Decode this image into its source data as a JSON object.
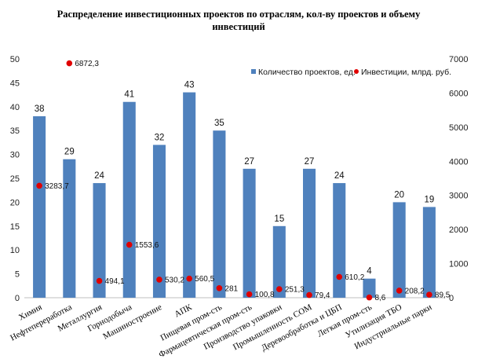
{
  "chart_data": {
    "type": "bar",
    "title_lines": [
      "Распределение инвестиционных проектов по отраслям, кол-ву проектов и объему",
      "инвестиций"
    ],
    "categories": [
      "Химия",
      "Нефтепереработка",
      "Металлургия",
      "Горнодобыча",
      "Машиностроение",
      "АПК",
      "Пищевая пром-сть",
      "Фармацевтическая пром-сть",
      "Производство упаковки",
      "Промышленность СОМ",
      "Деревообработка и ЦБП",
      "Легкая пром-сть",
      "Утилизация ТБО",
      "Индустриальные парки"
    ],
    "series": [
      {
        "name": "Количество проектов, ед.",
        "type": "bar",
        "axis": "left",
        "color": "#4F81BD",
        "values": [
          38,
          29,
          24,
          41,
          32,
          43,
          35,
          27,
          15,
          27,
          24,
          4,
          20,
          19
        ],
        "labels": [
          "38",
          "29",
          "24",
          "41",
          "32",
          "43",
          "35",
          "27",
          "15",
          "27",
          "24",
          "4",
          "20",
          "19"
        ]
      },
      {
        "name": "Инвестиции, млрд. руб.",
        "type": "scatter",
        "axis": "right",
        "color": "#E00000",
        "values": [
          3283.7,
          6872.3,
          494.1,
          1553.6,
          530.2,
          560.5,
          281,
          100.8,
          251.3,
          79.4,
          610.2,
          8.6,
          208.2,
          89.5
        ],
        "labels": [
          "3283,7",
          "6872,3",
          "494,1",
          "1553,6",
          "530,2",
          "560,5",
          "281",
          "100,8",
          "251,3",
          "79,4",
          "610,2",
          "8,6",
          "208,2",
          "89,5"
        ]
      }
    ],
    "y_left": {
      "min": 0,
      "max": 50,
      "step": 5
    },
    "y_right": {
      "min": 0,
      "max": 7000,
      "step": 1000
    },
    "grid": false,
    "legend_position": "top-right"
  }
}
